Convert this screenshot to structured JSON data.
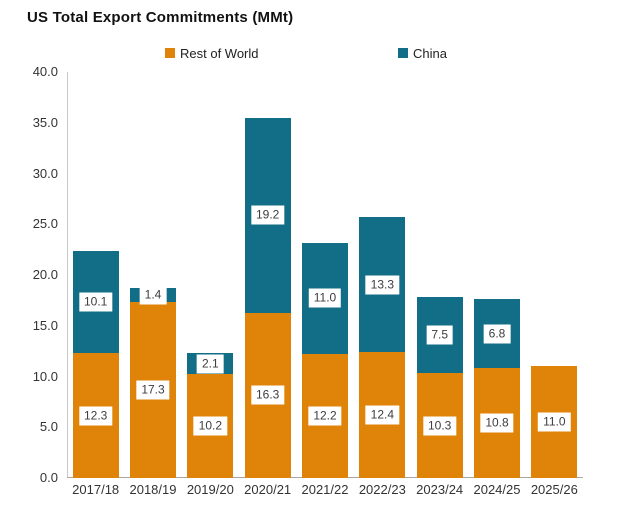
{
  "title": "US Total Export Commitments (MMt)",
  "chart_data": {
    "type": "bar",
    "stacked": true,
    "title": "US Total Export Commitments (MMt)",
    "categories": [
      "2017/18",
      "2018/19",
      "2019/20",
      "2020/21",
      "2021/22",
      "2022/23",
      "2023/24",
      "2024/25",
      "2025/26"
    ],
    "series": [
      {
        "name": "Rest of World",
        "color": "#E08309",
        "values": [
          12.3,
          17.3,
          10.2,
          16.3,
          12.2,
          12.4,
          10.3,
          10.8,
          11.0
        ]
      },
      {
        "name": "China",
        "color": "#126E86",
        "values": [
          10.1,
          1.4,
          2.1,
          19.2,
          11.0,
          13.3,
          7.5,
          6.8,
          0
        ]
      }
    ],
    "totals": [
      22.4,
      18.7,
      12.3,
      35.5,
      23.2,
      25.7,
      17.8,
      17.6,
      11.0
    ],
    "ylim": [
      0,
      40
    ],
    "ytick_step": 5,
    "ytick_labels": [
      "0.0",
      "5.0",
      "10.0",
      "15.0",
      "20.0",
      "25.0",
      "30.0",
      "35.0",
      "40.0"
    ],
    "xlabel": "",
    "ylabel": "",
    "grid": false,
    "legend_position": "top",
    "value_labels": true,
    "value_label_decimals": 1
  },
  "colors": {
    "rest_of_world": "#E08309",
    "china": "#126E86",
    "y_axis_line": "#c9c9c9",
    "x_axis_line": "#a6a6a6",
    "tick_text": "#333333",
    "value_label_text": "#3d3d3d",
    "background": "#ffffff"
  }
}
